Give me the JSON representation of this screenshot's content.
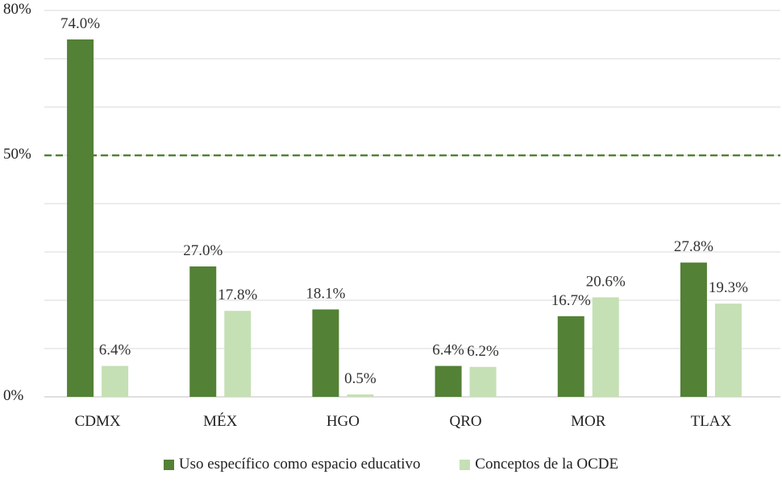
{
  "chart_data": {
    "type": "bar",
    "categories": [
      "CDMX",
      "MÉX",
      "HGO",
      "QRO",
      "MOR",
      "TLAX"
    ],
    "series": [
      {
        "name": "Uso específico como  espacio educativo",
        "color": "#538135",
        "values": [
          74.0,
          27.0,
          18.1,
          6.4,
          16.7,
          27.8
        ],
        "labels": [
          "74.0%",
          "27.0%",
          "18.1%",
          "6.4%",
          "16.7%",
          "27.8%"
        ]
      },
      {
        "name": "Conceptos de la OCDE",
        "color": "#c5e0b4",
        "values": [
          6.4,
          17.8,
          0.5,
          6.2,
          20.6,
          19.3
        ],
        "labels": [
          "6.4%",
          "17.8%",
          "0.5%",
          "6.2%",
          "20.6%",
          "19.3%"
        ]
      }
    ],
    "ylim": [
      0,
      80
    ],
    "yticks": [
      0,
      50,
      80
    ],
    "ytick_labels": [
      "0%",
      "50%",
      "80%"
    ],
    "gridlines": [
      0,
      10,
      20,
      30,
      40,
      50,
      60,
      70,
      80
    ],
    "reference_line": {
      "value": 50,
      "style": "dashed",
      "color": "#538135"
    },
    "legend_position": "bottom",
    "title": "",
    "xlabel": "",
    "ylabel": ""
  }
}
